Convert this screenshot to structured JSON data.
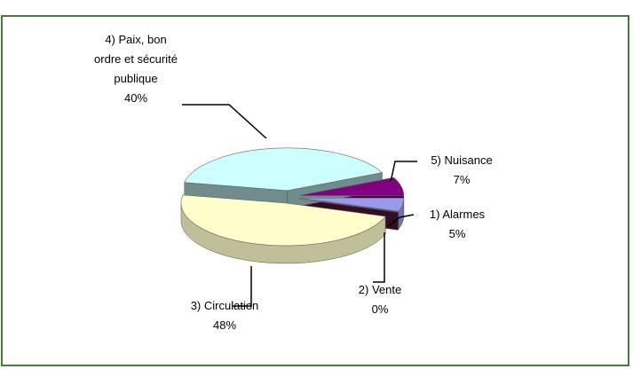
{
  "chart_data": {
    "type": "pie3d",
    "categories": [
      "5) Nuisance",
      "1) Alarmes",
      "2) Vente",
      "3) Circulation",
      "4) Paix, bon ordre et sécurité publique"
    ],
    "values": [
      7,
      5,
      0,
      48,
      40
    ],
    "value_labels": [
      "7%",
      "5%",
      "0%",
      "48%",
      "40%"
    ],
    "colors": [
      "#800080",
      "#9999f0",
      "#5a1a3a",
      "#ffffcc",
      "#ccffff"
    ]
  }
}
